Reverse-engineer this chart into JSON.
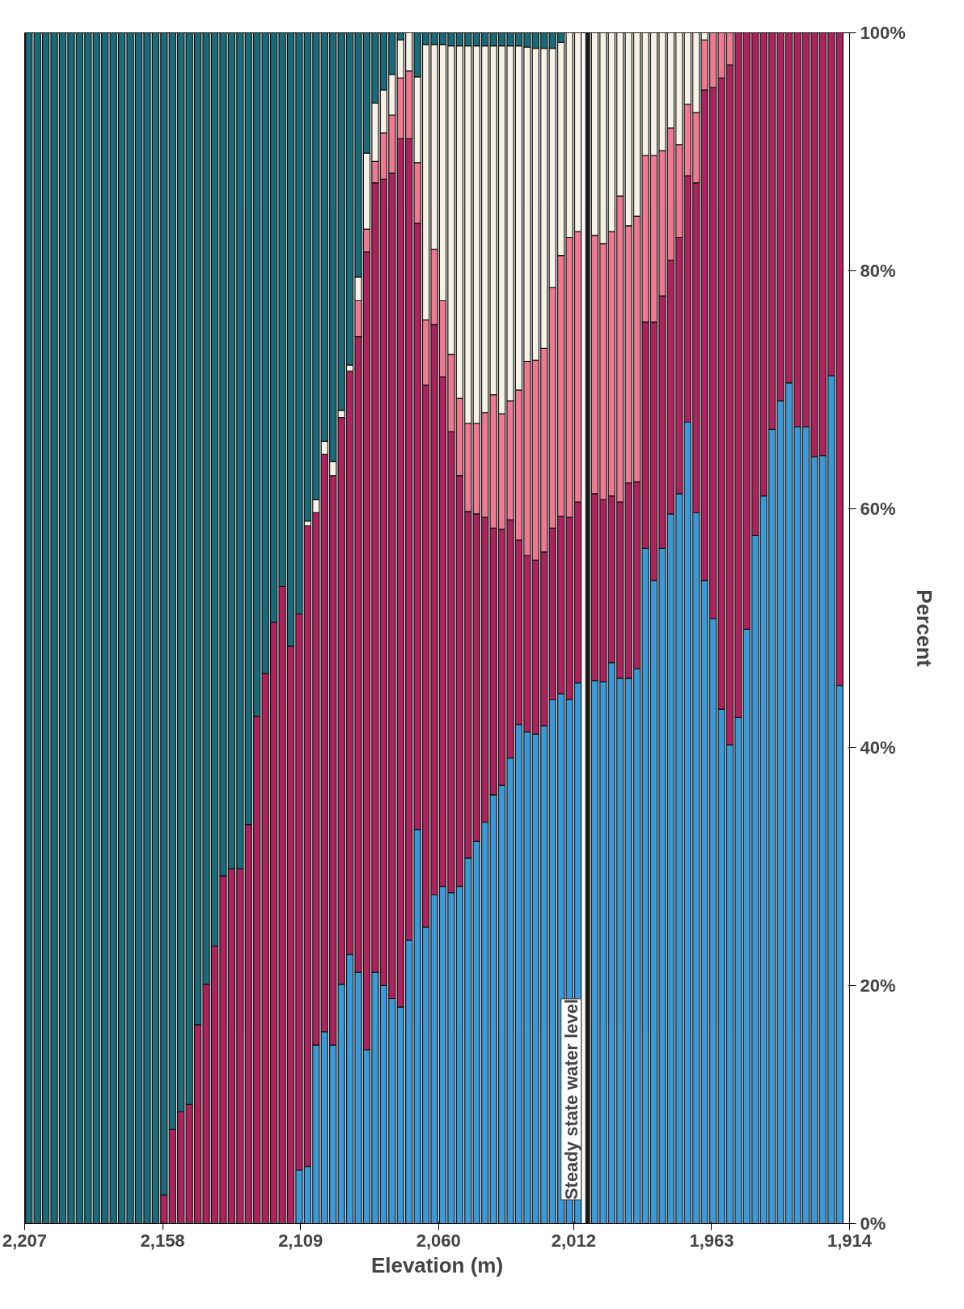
{
  "chart_data": {
    "type": "bar",
    "stacked": true,
    "xlabel": "Elevation (m)",
    "ylabel": "Percent",
    "x": [
      2205.5,
      2202.5,
      2199.5,
      2196.5,
      2193.5,
      2190.5,
      2187.5,
      2184.5,
      2181.5,
      2178.5,
      2175.5,
      2172.5,
      2169.5,
      2166.5,
      2163.5,
      2160.5,
      2157.5,
      2154.5,
      2151.5,
      2148.5,
      2145.5,
      2142.5,
      2139.5,
      2136.5,
      2133.5,
      2130.5,
      2127.5,
      2124.5,
      2121.5,
      2118.5,
      2115.5,
      2112.5,
      2109.5,
      2106.5,
      2103.5,
      2100.5,
      2097.5,
      2094.5,
      2091.5,
      2088.5,
      2085.5,
      2082.5,
      2079.5,
      2076.5,
      2073.5,
      2070.5,
      2067.5,
      2064.5,
      2061.5,
      2058.5,
      2055.5,
      2052.5,
      2049.5,
      2046.5,
      2043.5,
      2040.5,
      2037.5,
      2034.5,
      2031.5,
      2028.5,
      2025.5,
      2022.5,
      2019.5,
      2016.5,
      2013.5,
      2010.5,
      2007.5,
      2004.5,
      2001.5,
      1998.5,
      1995.5,
      1992.5,
      1989.5,
      1986.5,
      1983.5,
      1980.5,
      1977.5,
      1974.5,
      1971.5,
      1968.5,
      1965.5,
      1962.5,
      1959.5,
      1956.5,
      1953.5,
      1950.5,
      1947.5,
      1944.5,
      1941.5,
      1938.5,
      1935.5,
      1932.5,
      1929.5,
      1926.5,
      1923.5,
      1920.5,
      1917.5
    ],
    "series": [
      {
        "color": "#3a9ad9",
        "values": [
          0,
          0,
          0,
          0,
          0,
          0,
          0,
          0,
          0,
          0,
          0,
          0,
          0,
          0,
          0,
          0,
          0,
          0,
          0,
          0,
          0,
          0,
          0,
          0,
          0,
          0,
          0,
          0,
          0,
          0,
          0,
          0,
          4.5,
          4.8,
          15.0,
          16.1,
          15.0,
          20.1,
          22.6,
          21.1,
          14.6,
          21.1,
          20.0,
          18.9,
          18.2,
          23.8,
          33.1,
          24.9,
          27.6,
          28.3,
          27.8,
          28.3,
          30.7,
          32.1,
          33.7,
          36.0,
          36.8,
          39.1,
          41.9,
          41.3,
          41.1,
          41.8,
          44.0,
          44.5,
          44.0,
          45.4,
          null,
          45.6,
          45.5,
          47.1,
          45.8,
          45.8,
          46.6,
          56.7,
          54.0,
          56.7,
          59.6,
          61.3,
          67.3,
          59.7,
          54.0,
          50.8,
          43.2,
          40.2,
          42.5,
          49.9,
          57.8,
          61.1,
          66.7,
          69.1,
          70.6,
          66.9,
          66.9,
          64.4,
          64.5,
          71.2,
          45.2
        ]
      },
      {
        "color": "#b0225e",
        "values": [
          0,
          0,
          0,
          0,
          0,
          0,
          0,
          0,
          0,
          0,
          0,
          0,
          0,
          0,
          0,
          0,
          2.4,
          7.9,
          9.4,
          10.0,
          16.7,
          20.1,
          23.3,
          29.2,
          29.8,
          29.8,
          33.5,
          42.6,
          46.2,
          50.5,
          53.5,
          48.5,
          46.7,
          53.8,
          44.7,
          48.5,
          47.8,
          47.6,
          49.0,
          53.4,
          67.0,
          66.3,
          67.7,
          69.3,
          72.9,
          67.3,
          50.9,
          45.5,
          47.9,
          42.8,
          38.7,
          34.5,
          29.1,
          27.5,
          25.6,
          22.4,
          21.5,
          20.0,
          15.5,
          14.8,
          14.6,
          14.6,
          14.4,
          14.9,
          15.3,
          15.2,
          null,
          15.7,
          15.3,
          14.0,
          14.8,
          16.4,
          15.7,
          19.0,
          21.7,
          21.2,
          21.3,
          21.5,
          20.7,
          27.7,
          41.2,
          44.6,
          53.0,
          57.1,
          57.5,
          50.1,
          42.2,
          38.9,
          33.3,
          30.9,
          29.4,
          33.1,
          33.1,
          35.6,
          35.5,
          28.8,
          54.8
        ]
      },
      {
        "color": "#f07890",
        "values": [
          0,
          0,
          0,
          0,
          0,
          0,
          0,
          0,
          0,
          0,
          0,
          0,
          0,
          0,
          0,
          0,
          0,
          0,
          0,
          0,
          0,
          0,
          0,
          0,
          0,
          0,
          0,
          0,
          0,
          0,
          0,
          0,
          0,
          0,
          0,
          0,
          0,
          0,
          0,
          3.0,
          1.9,
          1.8,
          3.9,
          4.9,
          5.1,
          5.7,
          5.1,
          5.5,
          6.3,
          6.4,
          6.5,
          6.5,
          7.4,
          7.6,
          8.8,
          11.2,
          9.7,
          10.0,
          12.6,
          16.3,
          16.8,
          17.1,
          20.2,
          21.9,
          23.5,
          22.7,
          null,
          21.7,
          21.5,
          22.2,
          25.7,
          21.6,
          22.3,
          14.0,
          14.0,
          12.2,
          11.1,
          7.8,
          6.0,
          5.9,
          4.2,
          4.6,
          3.8,
          2.7,
          0,
          0,
          0,
          0,
          0,
          0,
          0,
          0,
          0,
          0,
          0,
          0,
          0
        ]
      },
      {
        "color": "#f6f3e6",
        "values": [
          0,
          0,
          0,
          0,
          0,
          0,
          0,
          0,
          0,
          0,
          0,
          0,
          0,
          0,
          0,
          0,
          0,
          0,
          0,
          0,
          0,
          0,
          0,
          0,
          0,
          0,
          0,
          0,
          0,
          0,
          0,
          0,
          0,
          0.4,
          1.1,
          1.1,
          1.2,
          0.6,
          0.5,
          2.0,
          6.4,
          4.9,
          3.6,
          3.4,
          3.2,
          3.2,
          7.2,
          23.1,
          17.2,
          21.5,
          25.9,
          29.6,
          31.7,
          31.7,
          30.8,
          29.3,
          30.9,
          29.8,
          28.9,
          26.4,
          26.2,
          25.2,
          20.1,
          17.9,
          17.2,
          16.7,
          null,
          17.0,
          17.7,
          16.7,
          13.7,
          16.2,
          15.4,
          10.3,
          10.3,
          9.9,
          8.0,
          9.4,
          6.0,
          6.7,
          0.6,
          0,
          0,
          0,
          0,
          0,
          0,
          0,
          0,
          0,
          0,
          0,
          0,
          0,
          0,
          0,
          0
        ]
      },
      {
        "color": "#1a6b7a",
        "values": [
          100,
          100,
          100,
          100,
          100,
          100,
          100,
          100,
          100,
          100,
          100,
          100,
          100,
          100,
          100,
          100,
          97.6,
          92.1,
          90.6,
          90.0,
          83.3,
          79.9,
          76.7,
          70.8,
          70.2,
          70.2,
          66.5,
          57.4,
          53.8,
          49.5,
          46.5,
          51.5,
          48.8,
          41.0,
          39.2,
          34.3,
          36.0,
          31.7,
          27.9,
          20.5,
          10.1,
          5.9,
          4.8,
          3.5,
          0.6,
          0,
          3.7,
          1.0,
          1.0,
          1.0,
          1.1,
          1.1,
          1.1,
          1.1,
          1.1,
          1.1,
          1.1,
          1.1,
          1.1,
          1.2,
          1.3,
          1.3,
          1.3,
          0.8,
          0,
          0,
          0,
          0,
          0,
          0,
          0,
          0,
          0,
          0,
          0,
          0,
          0,
          0,
          0,
          0,
          0,
          0,
          0,
          0,
          0,
          0,
          0,
          0,
          0,
          0,
          0,
          0,
          0,
          0,
          0,
          0,
          0
        ]
      }
    ],
    "xlim": [
      2207,
      1914
    ],
    "xticks": [
      {
        "value": 2207,
        "label": "2,207"
      },
      {
        "value": 2158,
        "label": "2,158"
      },
      {
        "value": 2109,
        "label": "2,109"
      },
      {
        "value": 2060,
        "label": "2,060"
      },
      {
        "value": 2012,
        "label": "2,012"
      },
      {
        "value": 1963,
        "label": "1,963"
      },
      {
        "value": 1914,
        "label": "1,914"
      }
    ],
    "ylim": [
      0,
      100
    ],
    "yticks": [
      {
        "value": 0,
        "label": "0%"
      },
      {
        "value": 20,
        "label": "20%"
      },
      {
        "value": 40,
        "label": "40%"
      },
      {
        "value": 60,
        "label": "60%"
      },
      {
        "value": 80,
        "label": "80%"
      },
      {
        "value": 100,
        "label": "100%"
      }
    ],
    "ref_lines": [
      {
        "axis": "x",
        "value": 2007,
        "label": "Steady state water level",
        "color": "#1a1a1a"
      }
    ],
    "grid": false
  }
}
